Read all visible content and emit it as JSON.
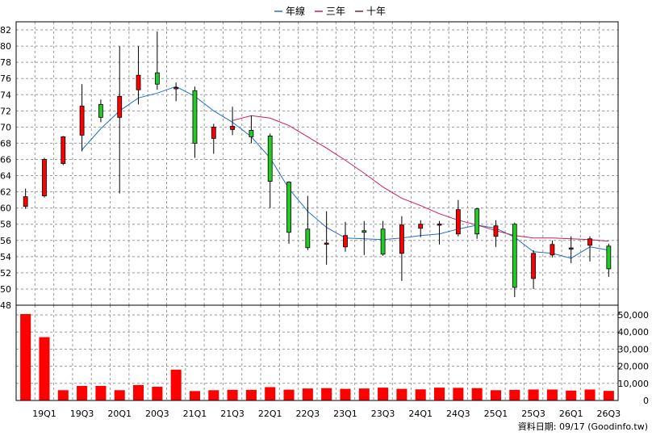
{
  "chart_data": {
    "type": "candlestick",
    "legend": [
      {
        "name": "年線",
        "color": "#1f6fd1"
      },
      {
        "name": "三年",
        "color": "#d11a5a"
      },
      {
        "name": "十年",
        "color": "#7a1a4a"
      }
    ],
    "price_ticks": [
      82,
      80,
      78,
      76,
      74,
      72,
      70,
      68,
      66,
      64,
      62,
      60,
      58,
      56,
      54,
      52,
      50,
      48
    ],
    "volume_ticks": [
      "50,000",
      "40,000",
      "30,000",
      "20,000",
      "10,000",
      "0"
    ],
    "volume_tick_values": [
      50000,
      40000,
      30000,
      20000,
      10000,
      0
    ],
    "x_labels": [
      "19Q1",
      "19Q3",
      "20Q1",
      "20Q3",
      "21Q1",
      "21Q3",
      "22Q1",
      "22Q3",
      "23Q1",
      "23Q3",
      "24Q1",
      "24Q3",
      "25Q1",
      "25Q3",
      "26Q1",
      "26Q3"
    ],
    "price_range": [
      48,
      83
    ],
    "volume_range": [
      0,
      50000
    ],
    "candles": [
      {
        "o": 60.2,
        "c": 61.4,
        "h": 62.4,
        "l": 59.9
      },
      {
        "o": 61.5,
        "c": 66.0,
        "h": 66.2,
        "l": 61.3
      },
      {
        "o": 65.5,
        "c": 68.8,
        "h": 68.9,
        "l": 65.3
      },
      {
        "o": 69.0,
        "c": 72.6,
        "h": 75.3,
        "l": 67.0
      },
      {
        "o": 72.8,
        "c": 71.2,
        "h": 73.4,
        "l": 70.6
      },
      {
        "o": 71.2,
        "c": 73.8,
        "h": 80.0,
        "l": 61.8
      },
      {
        "o": 74.6,
        "c": 76.4,
        "h": 80.0,
        "l": 72.8
      },
      {
        "o": 76.7,
        "c": 75.3,
        "h": 81.8,
        "l": 74.6
      },
      {
        "o": 74.8,
        "c": 74.8,
        "h": 75.5,
        "l": 73.2
      },
      {
        "o": 74.5,
        "c": 68.0,
        "h": 75.0,
        "l": 66.2
      },
      {
        "o": 68.6,
        "c": 70.0,
        "h": 70.4,
        "l": 66.7
      },
      {
        "o": 69.7,
        "c": 70.1,
        "h": 72.5,
        "l": 69.0
      },
      {
        "o": 69.6,
        "c": 68.8,
        "h": 71.4,
        "l": 68.0
      },
      {
        "o": 68.9,
        "c": 63.3,
        "h": 69.2,
        "l": 60.0
      },
      {
        "o": 63.2,
        "c": 57.0,
        "h": 63.3,
        "l": 55.6
      },
      {
        "o": 57.4,
        "c": 55.1,
        "h": 61.5,
        "l": 54.8
      },
      {
        "o": 55.6,
        "c": 55.6,
        "h": 59.6,
        "l": 53.0
      },
      {
        "o": 55.2,
        "c": 56.6,
        "h": 58.3,
        "l": 54.6
      },
      {
        "o": 57.2,
        "c": 57.0,
        "h": 58.4,
        "l": 54.2
      },
      {
        "o": 57.4,
        "c": 54.3,
        "h": 58.4,
        "l": 54.1
      },
      {
        "o": 54.4,
        "c": 57.9,
        "h": 59.0,
        "l": 51.0
      },
      {
        "o": 57.5,
        "c": 58.0,
        "h": 58.5,
        "l": 56.4
      },
      {
        "o": 57.9,
        "c": 58.0,
        "h": 58.4,
        "l": 55.5
      },
      {
        "o": 56.8,
        "c": 59.8,
        "h": 61.0,
        "l": 56.5
      },
      {
        "o": 59.9,
        "c": 56.8,
        "h": 60.0,
        "l": 56.2
      },
      {
        "o": 56.5,
        "c": 57.8,
        "h": 58.5,
        "l": 55.2
      },
      {
        "o": 58.0,
        "c": 50.2,
        "h": 58.2,
        "l": 49.0
      },
      {
        "o": 51.3,
        "c": 54.4,
        "h": 54.8,
        "l": 50.0
      },
      {
        "o": 54.2,
        "c": 55.5,
        "h": 56.0,
        "l": 53.9
      },
      {
        "o": 55.0,
        "c": 55.0,
        "h": 56.5,
        "l": 53.2
      },
      {
        "o": 55.4,
        "c": 56.2,
        "h": 56.5,
        "l": 53.4
      },
      {
        "o": 55.3,
        "c": 52.5,
        "h": 55.6,
        "l": 51.5
      }
    ],
    "volumes": [
      50500,
      37000,
      6000,
      8500,
      8500,
      6000,
      9000,
      8000,
      18000,
      5500,
      6000,
      6200,
      6200,
      7800,
      6300,
      7000,
      7200,
      6800,
      7000,
      7500,
      6800,
      6500,
      7500,
      7400,
      7200,
      6000,
      6200,
      6400,
      6400,
      5800,
      6400,
      5600
    ],
    "annual_line": [
      null,
      null,
      null,
      67.2,
      69.8,
      72.0,
      73.6,
      74.2,
      75.0,
      73.8,
      72.0,
      70.6,
      68.8,
      66.2,
      62.4,
      59.6,
      57.6,
      56.3,
      56.2,
      56.1,
      56.3,
      56.6,
      56.8,
      57.4,
      57.9,
      57.5,
      56.4,
      54.6,
      54.4,
      53.8,
      55.2,
      54.8
    ],
    "three_year_line": [
      null,
      null,
      null,
      null,
      null,
      null,
      null,
      null,
      null,
      null,
      null,
      70.8,
      71.4,
      71.1,
      70.2,
      68.8,
      67.4,
      65.9,
      64.3,
      62.6,
      61.2,
      60.3,
      59.3,
      58.5,
      57.9,
      57.2,
      56.6,
      56.3,
      56.3,
      56.2,
      56.1,
      55.9
    ],
    "ten_year_line": [],
    "source": "資料日期: 09/17 (Goodinfo.tw)"
  }
}
